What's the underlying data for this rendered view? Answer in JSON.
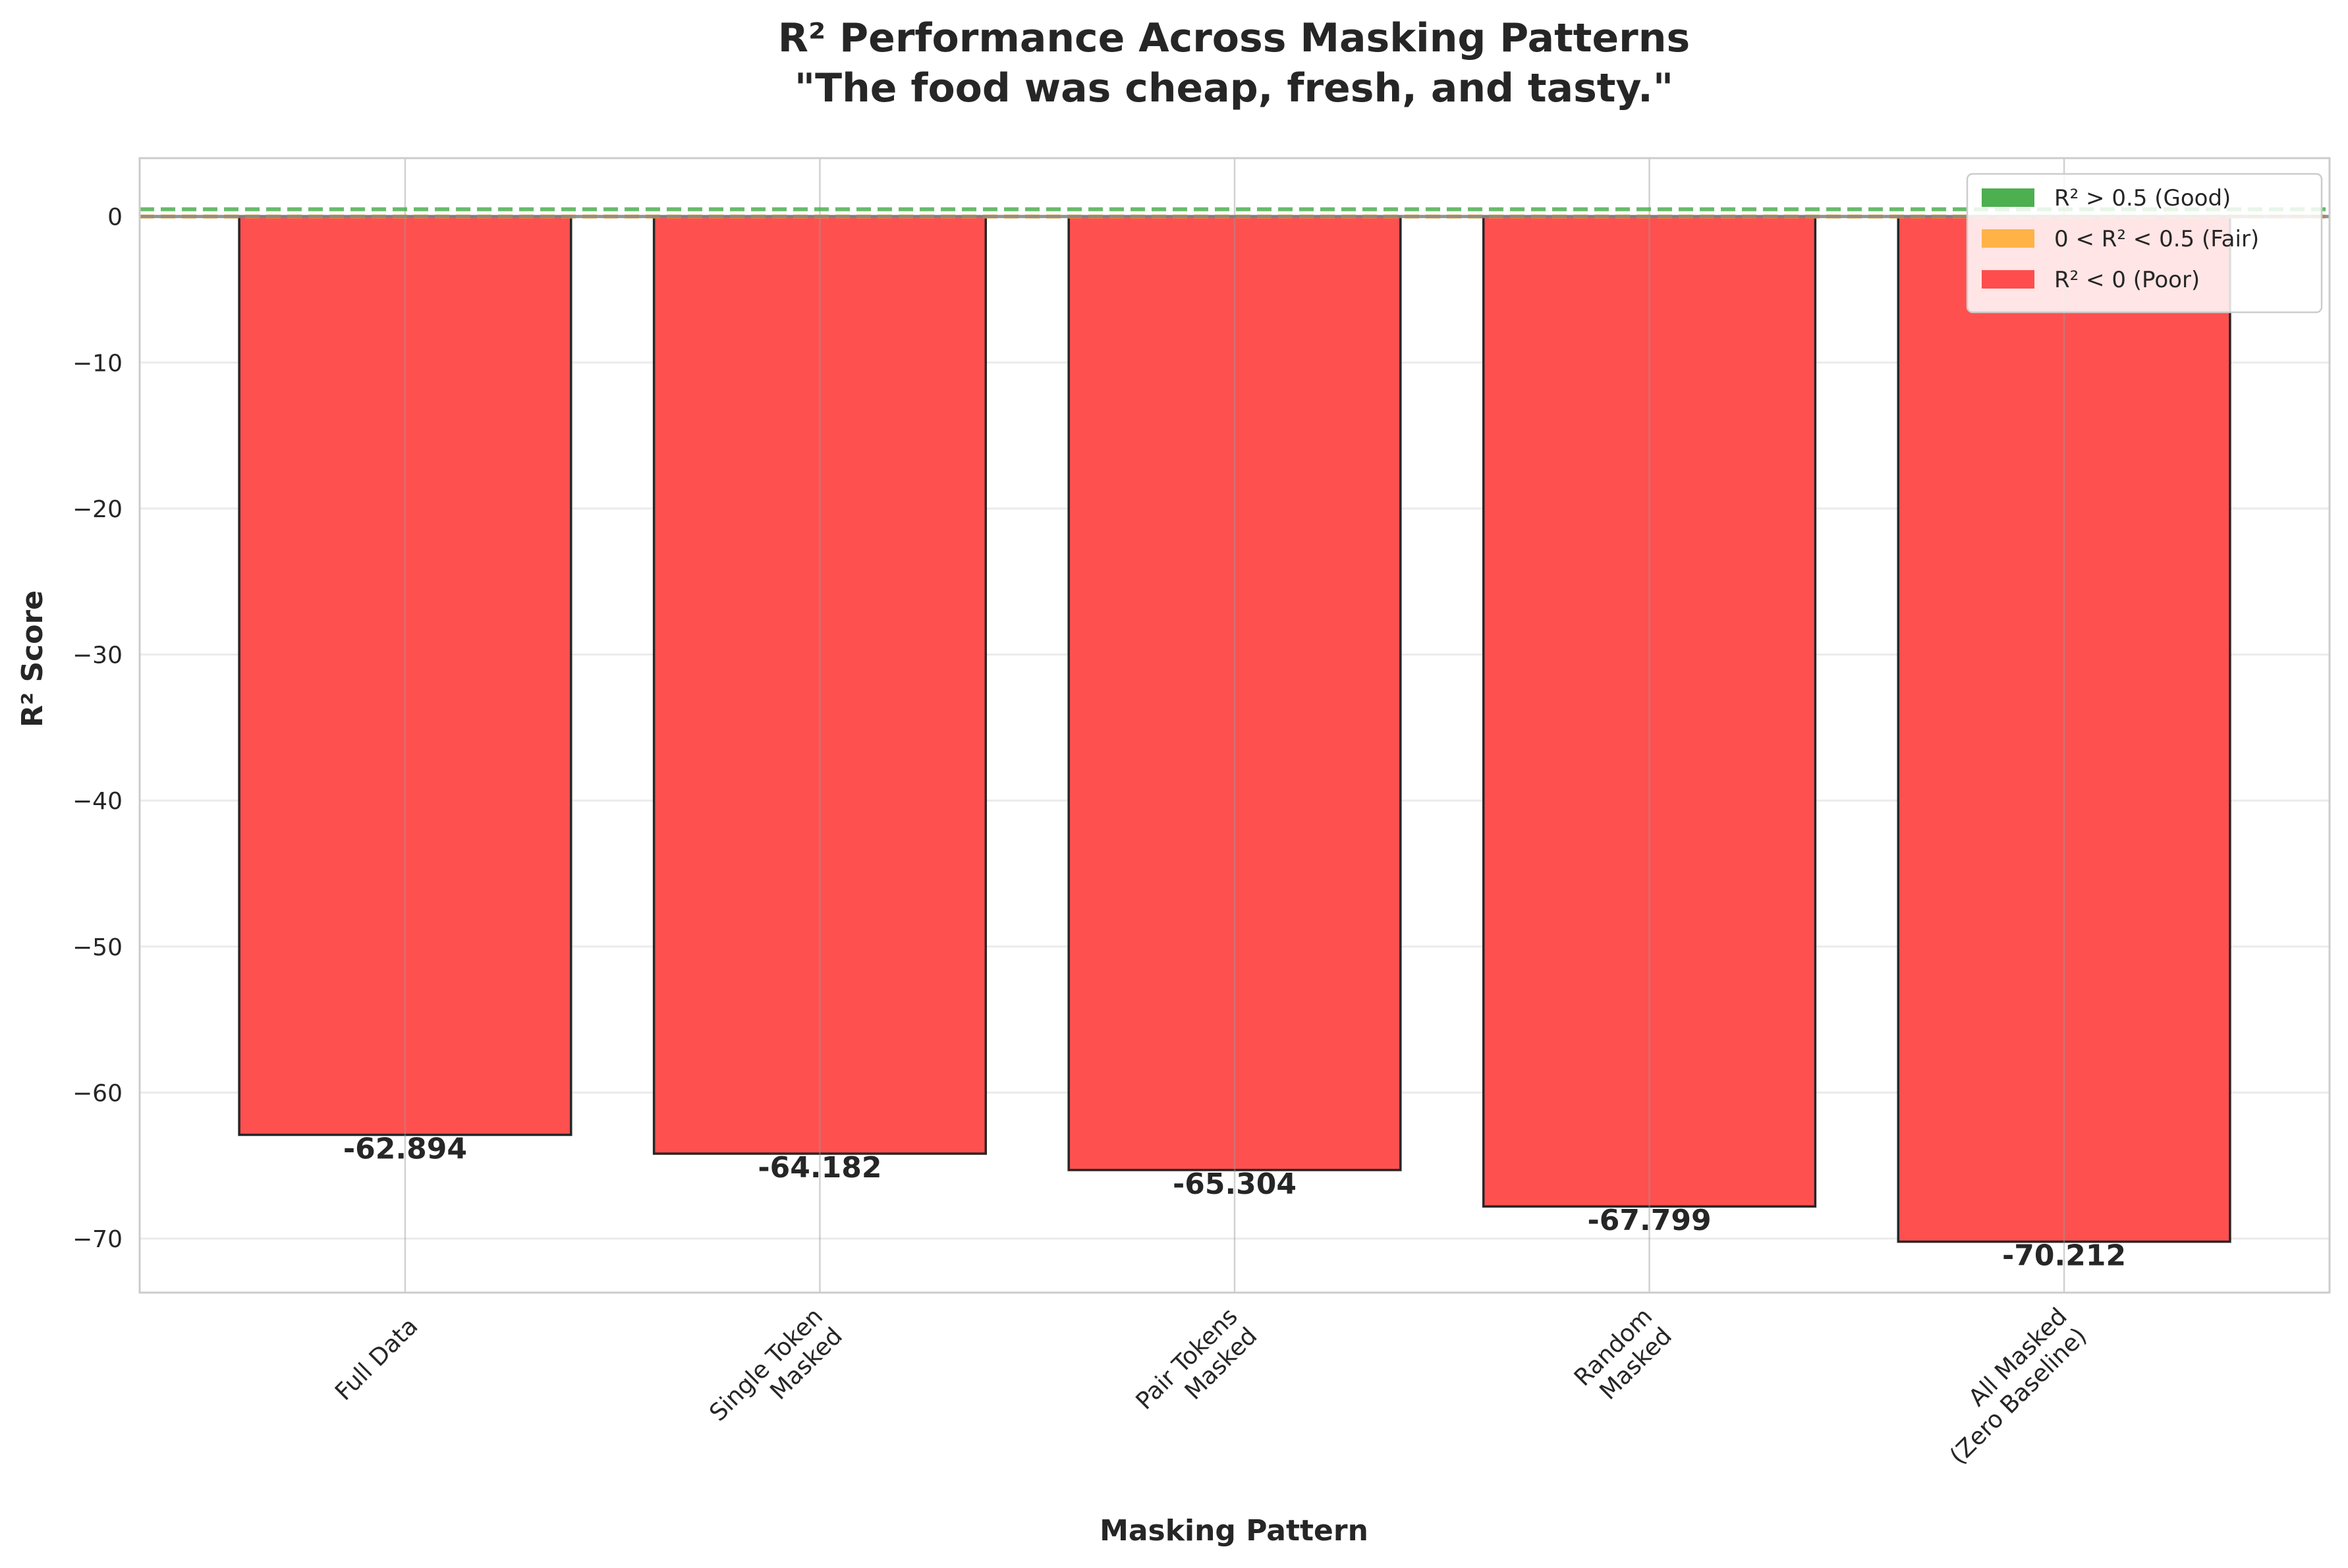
{
  "chart_data": {
    "type": "bar",
    "title_lines": [
      "R² Performance Across Masking Patterns",
      "\"The food was cheap, fresh, and tasty.\""
    ],
    "xlabel": "Masking Pattern",
    "ylabel": "R² Score",
    "categories": [
      "Full Data",
      "Single Token\nMasked",
      "Pair Tokens\nMasked",
      "Random\nMasked",
      "All Masked\n(Zero Baseline)"
    ],
    "values": [
      -62.894,
      -64.182,
      -65.304,
      -67.799,
      -70.212
    ],
    "value_labels": [
      "-62.894",
      "-64.182",
      "-65.304",
      "-67.799",
      "-70.212"
    ],
    "ylim": [
      -73.7,
      4.0
    ],
    "yticks": [
      0,
      -10,
      -20,
      -30,
      -40,
      -50,
      -60,
      -70
    ],
    "ytick_labels": [
      "0",
      "−10",
      "−20",
      "−30",
      "−40",
      "−50",
      "−60",
      "−70"
    ],
    "reference_lines": [
      {
        "y": 0.5,
        "color": "#4caf50",
        "style": "dashed"
      },
      {
        "y": 0.0,
        "color": "#f5a623",
        "style": "dashed"
      },
      {
        "y": 0.0,
        "color": "#888888",
        "style": "solid"
      }
    ],
    "grid": true,
    "legend_position": "top-right",
    "legend": [
      {
        "label": "R² > 0.5 (Good)",
        "color": "#4caf50"
      },
      {
        "label": "0 < R² < 0.5 (Fair)",
        "color": "#ffb347"
      },
      {
        "label": "R² < 0 (Poor)",
        "color": "#ff4d4d"
      }
    ],
    "bar_color": "#ff4d4d",
    "bar_edge_color": "#262626"
  }
}
